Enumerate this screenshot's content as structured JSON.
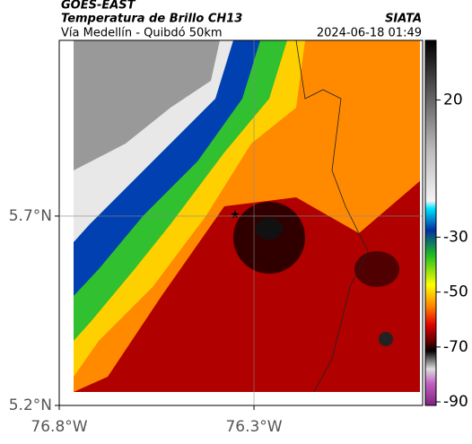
{
  "header": {
    "product": "GOES-EAST",
    "title": "Temperatura de Brillo CH13",
    "subtitle": "Vía Medellín - Quibdó 50km",
    "source": "SIATA",
    "datetime": "2024-06-18 01:49"
  },
  "map": {
    "xlim": [
      -76.8,
      -75.867
    ],
    "ylim": [
      5.2,
      6.164
    ],
    "xticks": [
      {
        "value": -76.8,
        "label": "76.8°W"
      },
      {
        "value": -76.3,
        "label": "76.3°W"
      }
    ],
    "yticks": [
      {
        "value": 5.2,
        "label": "5.2°N"
      },
      {
        "value": 5.7,
        "label": "5.7°N"
      }
    ],
    "grid": true
  },
  "colorbar": {
    "lim": [
      -91.3,
      41.7
    ],
    "ticks": [
      20,
      -30,
      -50,
      -70,
      -90
    ]
  }
}
